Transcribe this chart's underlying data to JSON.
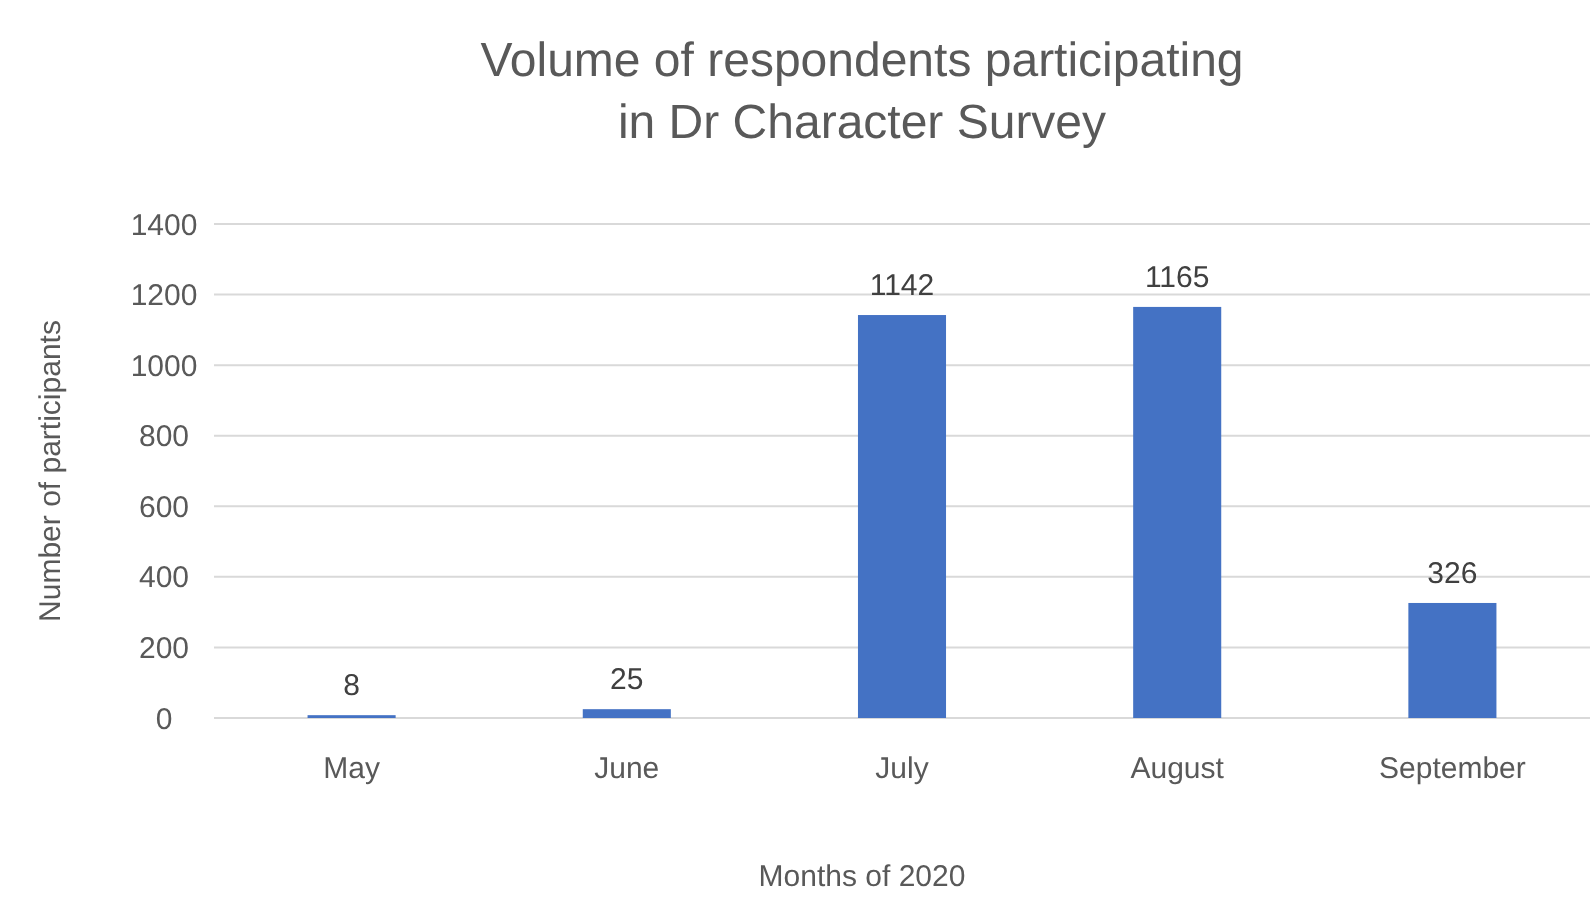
{
  "chart_data": {
    "type": "bar",
    "title": "Volume of respondents participating\nin Dr Character Survey",
    "xlabel": "Months of 2020",
    "ylabel": "Number of participants",
    "categories": [
      "May",
      "June",
      "July",
      "August",
      "September"
    ],
    "values": [
      8,
      25,
      1142,
      1165,
      326
    ],
    "color": "#4472c4",
    "ylim": [
      0,
      1400
    ],
    "yticks": [
      0,
      200,
      400,
      600,
      800,
      1000,
      1200,
      1400
    ],
    "grid": "y",
    "data_labels": true
  }
}
